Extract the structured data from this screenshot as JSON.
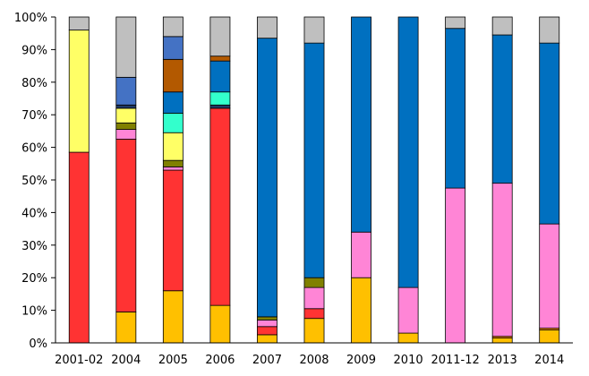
{
  "chart_data": {
    "type": "bar",
    "stacked": true,
    "normalized": true,
    "title": "",
    "xlabel": "",
    "ylabel": "",
    "ylim": [
      0,
      100
    ],
    "yticks": [
      "0%",
      "10%",
      "20%",
      "30%",
      "40%",
      "50%",
      "60%",
      "70%",
      "80%",
      "90%",
      "100%"
    ],
    "grid": false,
    "legend": "none",
    "categories": [
      "2001-02",
      "2004",
      "2005",
      "2006",
      "2007",
      "2008",
      "2009",
      "2010",
      "2011-12",
      "2013",
      "2014"
    ],
    "series": [
      {
        "color": "#FFC000",
        "values": [
          0,
          9.5,
          16,
          11.5,
          2.5,
          7.5,
          20,
          3,
          0,
          1.5,
          4
        ]
      },
      {
        "color": "#FF8C00",
        "values": [
          0,
          0,
          0,
          0,
          0,
          0,
          0,
          0,
          0,
          0.5,
          0.5
        ]
      },
      {
        "color": "#FF3333",
        "values": [
          58.5,
          53,
          37,
          60.5,
          2.5,
          3,
          0,
          0,
          0,
          0,
          0
        ]
      },
      {
        "color": "#FF85D6",
        "values": [
          0,
          3,
          1,
          0,
          2,
          6.5,
          14,
          14,
          47.5,
          47,
          32
        ]
      },
      {
        "color": "#808000",
        "values": [
          0,
          2,
          2,
          0,
          1,
          3,
          0,
          0,
          0,
          0,
          0
        ]
      },
      {
        "color": "#FFFF66",
        "values": [
          37.5,
          4.5,
          8.5,
          0,
          0,
          0,
          0,
          0,
          0,
          0,
          0
        ]
      },
      {
        "color": "#1F3864",
        "values": [
          0,
          1,
          0,
          1,
          0,
          0,
          0,
          0,
          0,
          0,
          0
        ]
      },
      {
        "color": "#33FFCC",
        "values": [
          0,
          0,
          6,
          4,
          0,
          0,
          0,
          0,
          0,
          0,
          0
        ]
      },
      {
        "color": "#0070C0",
        "values": [
          0,
          0,
          6.5,
          9.5,
          85.5,
          72,
          66,
          83,
          49,
          45.5,
          55.5
        ]
      },
      {
        "color": "#B35900",
        "values": [
          0,
          0,
          10,
          1.5,
          0,
          0,
          0,
          0,
          0,
          0,
          0
        ]
      },
      {
        "color": "#4472C4",
        "values": [
          0,
          8.5,
          7,
          0,
          0,
          0,
          0,
          0,
          0,
          0,
          0
        ]
      },
      {
        "color": "#BFBFBF",
        "values": [
          4,
          18.5,
          6,
          12,
          6.5,
          8,
          0,
          0,
          3.5,
          5.5,
          8
        ]
      }
    ]
  }
}
